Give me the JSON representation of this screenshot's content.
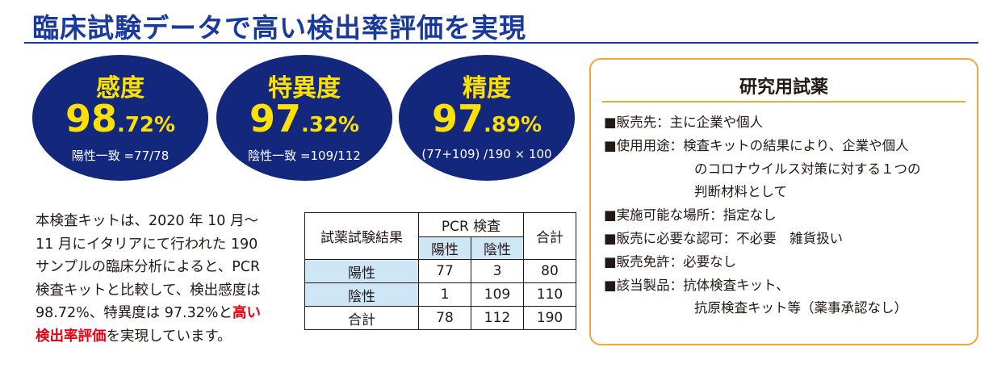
{
  "title": "臨床試験データで高い検出率評価を実現",
  "colors": {
    "accent": "#1a3a9b",
    "circle": "#13277c",
    "highlight": "#ffe100",
    "red": "#e60012",
    "orange": "#f0a63a",
    "table_blue": "#cfe6f7"
  },
  "metrics": [
    {
      "label": "感度",
      "value_int": "98",
      "value_dec": ".72%",
      "note": "陽性一致 =77/78"
    },
    {
      "label": "特異度",
      "value_int": "97",
      "value_dec": ".32%",
      "note": "陰性一致 =109/112"
    },
    {
      "label": "精度",
      "value_int": "97",
      "value_dec": ".89%",
      "note": "(77+109) /190 × 100"
    }
  ],
  "description": {
    "lines": [
      "本検査キットは、2020 年 10 月〜",
      "11 月にイタリアにて行われた 190",
      "サンプルの臨床分析によると、PCR",
      "検査キットと比較して、検出感度は",
      "98.72%、特異度は 97.32%と"
    ],
    "highlight_1": "高い",
    "highlight_2": "検出率評価",
    "tail": "を実現しています。"
  },
  "table": {
    "row_header": "試薬試験結果",
    "pcr_header": "PCR 検査",
    "total_header": "合計",
    "pos_header": "陽性",
    "neg_header": "陰性",
    "rows": [
      {
        "label": "陽性",
        "pos": "77",
        "neg": "3",
        "total": "80"
      },
      {
        "label": "陰性",
        "pos": "1",
        "neg": "109",
        "total": "110"
      },
      {
        "label": "合計",
        "pos": "78",
        "neg": "112",
        "total": "190"
      }
    ]
  },
  "research": {
    "title": "研究用試薬",
    "lines": [
      "■販売先：主に企業や個人",
      "■使用用途：検査キットの結果により、企業や個人",
      "のコロナウイルス対策に対する１つの",
      "判断材料として",
      "■実施可能な場所：指定なし",
      "■販売に必要な認可：不必要　雑貨扱い",
      "■販売免許：必要なし",
      "■該当製品：抗体検査キット、",
      "抗原検査キット等（薬事承認なし）"
    ]
  }
}
